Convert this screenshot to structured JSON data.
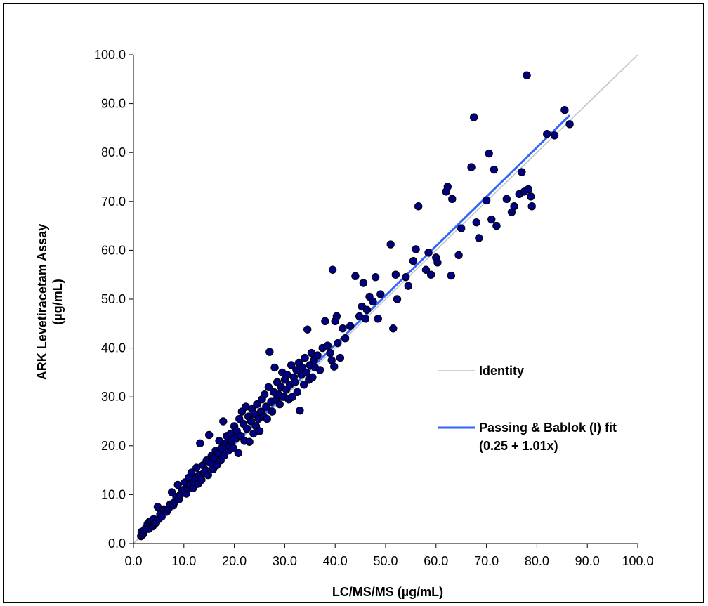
{
  "chart_data": {
    "type": "scatter",
    "xlabel": "LC/MS/MS (µg/mL)",
    "ylabel_line1": "ARK Levetiracetam Assay",
    "ylabel_line2": "(µg/mL)",
    "xlim": [
      0,
      100
    ],
    "ylim": [
      0,
      100
    ],
    "x_ticks": [
      "0.0",
      "10.0",
      "20.0",
      "30.0",
      "40.0",
      "50.0",
      "60.0",
      "70.0",
      "80.0",
      "90.0",
      "100.0"
    ],
    "y_ticks": [
      "0.0",
      "10.0",
      "20.0",
      "30.0",
      "40.0",
      "50.0",
      "60.0",
      "70.0",
      "80.0",
      "90.0",
      "100.0"
    ],
    "grid": false,
    "legend_position": "right-middle",
    "colors": {
      "points": "#000080",
      "identity": "#c0c0c0",
      "fit": "#3366ff"
    },
    "identity": {
      "label": "Identity",
      "x": [
        0,
        100
      ],
      "y": [
        0,
        100
      ]
    },
    "fit": {
      "label_line1": "Passing & Bablok (I) fit",
      "label_line2": "(0.25 + 1.01x)",
      "intercept": 0.25,
      "slope": 1.01,
      "x_range": [
        1.5,
        86.5
      ]
    },
    "points": [
      [
        1.5,
        1.5
      ],
      [
        1.6,
        2.4
      ],
      [
        1.8,
        1.8
      ],
      [
        2.0,
        2.0
      ],
      [
        2.2,
        2.8
      ],
      [
        2.5,
        3.3
      ],
      [
        2.8,
        4.0
      ],
      [
        3.0,
        3.0
      ],
      [
        3.2,
        4.5
      ],
      [
        3.5,
        4.6
      ],
      [
        3.8,
        3.5
      ],
      [
        4.0,
        5.0
      ],
      [
        4.2,
        4.0
      ],
      [
        4.5,
        4.3
      ],
      [
        4.8,
        7.5
      ],
      [
        5.0,
        5.0
      ],
      [
        5.3,
        6.0
      ],
      [
        5.6,
        5.5
      ],
      [
        6.0,
        7.0
      ],
      [
        6.3,
        6.8
      ],
      [
        6.6,
        6.5
      ],
      [
        7.0,
        7.2
      ],
      [
        7.3,
        8.0
      ],
      [
        7.6,
        10.5
      ],
      [
        7.9,
        7.8
      ],
      [
        8.2,
        8.5
      ],
      [
        8.5,
        9.5
      ],
      [
        8.8,
        12.0
      ],
      [
        9.0,
        9.0
      ],
      [
        9.3,
        10.0
      ],
      [
        9.6,
        10.8
      ],
      [
        10.0,
        11.0
      ],
      [
        10.2,
        12.5
      ],
      [
        10.5,
        10.2
      ],
      [
        10.8,
        11.5
      ],
      [
        11.0,
        13.5
      ],
      [
        11.2,
        12.0
      ],
      [
        11.5,
        14.5
      ],
      [
        11.8,
        11.3
      ],
      [
        12.0,
        12.5
      ],
      [
        12.3,
        13.2
      ],
      [
        12.5,
        15.5
      ],
      [
        12.8,
        12.2
      ],
      [
        13.0,
        14.0
      ],
      [
        13.2,
        20.5
      ],
      [
        13.5,
        13.0
      ],
      [
        13.8,
        16.0
      ],
      [
        14.0,
        14.5
      ],
      [
        14.3,
        15.0
      ],
      [
        14.5,
        17.0
      ],
      [
        14.8,
        14.0
      ],
      [
        15.0,
        22.2
      ],
      [
        15.3,
        16.5
      ],
      [
        15.5,
        18.0
      ],
      [
        15.8,
        15.2
      ],
      [
        16.0,
        17.5
      ],
      [
        16.3,
        19.0
      ],
      [
        16.5,
        16.0
      ],
      [
        16.8,
        18.5
      ],
      [
        17.0,
        21.0
      ],
      [
        17.3,
        17.0
      ],
      [
        17.5,
        19.5
      ],
      [
        17.8,
        25.0
      ],
      [
        18.0,
        18.0
      ],
      [
        18.3,
        20.5
      ],
      [
        18.5,
        22.0
      ],
      [
        18.8,
        19.0
      ],
      [
        19.0,
        20.0
      ],
      [
        19.3,
        22.5
      ],
      [
        19.5,
        21.0
      ],
      [
        19.8,
        19.5
      ],
      [
        20.0,
        24.0
      ],
      [
        20.3,
        21.5
      ],
      [
        20.5,
        23.0
      ],
      [
        20.8,
        18.5
      ],
      [
        21.0,
        25.5
      ],
      [
        21.3,
        22.0
      ],
      [
        21.5,
        27.0
      ],
      [
        21.8,
        24.5
      ],
      [
        22.0,
        21.0
      ],
      [
        22.3,
        28.0
      ],
      [
        22.5,
        23.5
      ],
      [
        22.8,
        26.0
      ],
      [
        23.0,
        20.8
      ],
      [
        23.3,
        25.0
      ],
      [
        23.5,
        27.5
      ],
      [
        23.8,
        22.5
      ],
      [
        24.0,
        26.5
      ],
      [
        24.3,
        24.0
      ],
      [
        24.5,
        28.5
      ],
      [
        24.8,
        25.5
      ],
      [
        25.0,
        23.0
      ],
      [
        25.3,
        27.0
      ],
      [
        25.5,
        29.5
      ],
      [
        25.8,
        26.0
      ],
      [
        26.0,
        30.5
      ],
      [
        26.3,
        28.0
      ],
      [
        26.5,
        25.5
      ],
      [
        26.8,
        32.0
      ],
      [
        27.0,
        39.2
      ],
      [
        27.3,
        29.0
      ],
      [
        27.5,
        27.0
      ],
      [
        27.8,
        31.0
      ],
      [
        28.0,
        36.0
      ],
      [
        28.3,
        29.5
      ],
      [
        28.5,
        33.0
      ],
      [
        28.8,
        30.5
      ],
      [
        29.0,
        28.5
      ],
      [
        29.3,
        32.0
      ],
      [
        29.5,
        35.0
      ],
      [
        29.8,
        30.0
      ],
      [
        30.0,
        33.5
      ],
      [
        30.3,
        31.5
      ],
      [
        30.5,
        34.5
      ],
      [
        30.8,
        29.5
      ],
      [
        31.0,
        32.5
      ],
      [
        31.3,
        36.5
      ],
      [
        31.5,
        30.0
      ],
      [
        31.8,
        34.0
      ],
      [
        32.0,
        33.0
      ],
      [
        32.3,
        35.5
      ],
      [
        32.5,
        31.0
      ],
      [
        32.8,
        37.0
      ],
      [
        33.0,
        27.2
      ],
      [
        33.3,
        34.5
      ],
      [
        33.5,
        36.0
      ],
      [
        33.8,
        32.5
      ],
      [
        34.0,
        38.0
      ],
      [
        34.3,
        35.0
      ],
      [
        34.5,
        43.8
      ],
      [
        34.8,
        33.5
      ],
      [
        35.0,
        36.5
      ],
      [
        35.3,
        39.0
      ],
      [
        35.5,
        34.0
      ],
      [
        35.8,
        37.5
      ],
      [
        36.0,
        36.0
      ],
      [
        36.5,
        38.5
      ],
      [
        37.0,
        35.5
      ],
      [
        37.5,
        40.0
      ],
      [
        38.0,
        45.5
      ],
      [
        38.5,
        40.5
      ],
      [
        39.0,
        39.0
      ],
      [
        39.3,
        37.5
      ],
      [
        39.5,
        56.0
      ],
      [
        39.8,
        36.2
      ],
      [
        40.0,
        45.5
      ],
      [
        40.3,
        46.5
      ],
      [
        40.5,
        41.0
      ],
      [
        41.0,
        38.0
      ],
      [
        41.5,
        44.0
      ],
      [
        42.0,
        42.0
      ],
      [
        43.0,
        44.5
      ],
      [
        44.0,
        54.7
      ],
      [
        44.8,
        46.5
      ],
      [
        45.3,
        48.5
      ],
      [
        45.6,
        53.3
      ],
      [
        46.0,
        46.0
      ],
      [
        46.3,
        47.8
      ],
      [
        46.8,
        50.5
      ],
      [
        47.5,
        49.5
      ],
      [
        48.0,
        54.5
      ],
      [
        48.5,
        46.0
      ],
      [
        49.0,
        51.0
      ],
      [
        51.0,
        61.2
      ],
      [
        51.5,
        44.0
      ],
      [
        52.0,
        55.0
      ],
      [
        52.3,
        50.0
      ],
      [
        54.0,
        54.5
      ],
      [
        54.5,
        52.7
      ],
      [
        55.5,
        57.8
      ],
      [
        56.0,
        60.2
      ],
      [
        56.5,
        69.0
      ],
      [
        58.0,
        56.0
      ],
      [
        58.5,
        59.5
      ],
      [
        59.0,
        55.0
      ],
      [
        60.0,
        58.5
      ],
      [
        60.3,
        57.5
      ],
      [
        62.0,
        72.0
      ],
      [
        62.3,
        73.0
      ],
      [
        63.0,
        54.8
      ],
      [
        63.2,
        70.5
      ],
      [
        64.5,
        59.0
      ],
      [
        65.0,
        64.5
      ],
      [
        67.0,
        77.0
      ],
      [
        67.5,
        87.2
      ],
      [
        68.0,
        65.7
      ],
      [
        68.5,
        62.5
      ],
      [
        70.0,
        70.2
      ],
      [
        70.5,
        79.8
      ],
      [
        71.0,
        66.3
      ],
      [
        71.5,
        76.5
      ],
      [
        72.0,
        65.0
      ],
      [
        74.0,
        70.5
      ],
      [
        75.0,
        67.8
      ],
      [
        75.5,
        69.0
      ],
      [
        76.5,
        71.5
      ],
      [
        77.0,
        76.0
      ],
      [
        77.5,
        72.0
      ],
      [
        78.0,
        95.8
      ],
      [
        78.3,
        72.5
      ],
      [
        78.8,
        71.0
      ],
      [
        79.0,
        69.0
      ],
      [
        82.0,
        83.8
      ],
      [
        83.5,
        83.5
      ],
      [
        85.5,
        88.7
      ],
      [
        86.5,
        85.8
      ]
    ]
  }
}
